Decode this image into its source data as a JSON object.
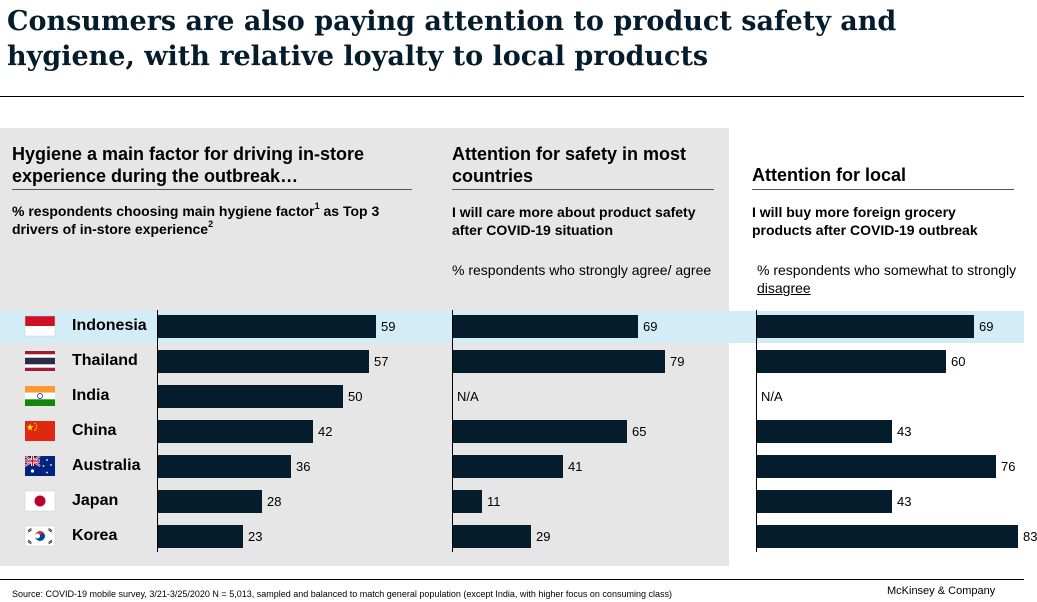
{
  "title": "Consumers are also paying attention to product safety and hygiene, with relative loyalty to local products",
  "countries": [
    {
      "name": "Indonesia",
      "flag": "indonesia-flag"
    },
    {
      "name": "Thailand",
      "flag": "thailand-flag"
    },
    {
      "name": "India",
      "flag": "india-flag"
    },
    {
      "name": "China",
      "flag": "china-flag"
    },
    {
      "name": "Australia",
      "flag": "australia-flag"
    },
    {
      "name": "Japan",
      "flag": "japan-flag"
    },
    {
      "name": "Korea",
      "flag": "korea-flag"
    }
  ],
  "panels": {
    "hygiene": {
      "heading": "Hygiene a main factor for driving in-store experience during the outbreak…",
      "desc_main": "% respondents choosing main hygiene factor",
      "desc_sup1": "1",
      "desc_as": " as Top 3 drivers of in-store experience",
      "desc_sup2": "2"
    },
    "safety": {
      "heading": "Attention for safety in most countries",
      "desc": "I will care more about product safety after COVID-19 situation",
      "note": "% respondents who strongly agree/ agree"
    },
    "local": {
      "heading": "Attention for local",
      "desc": "I will buy more foreign grocery products after COVID-19 outbreak",
      "note_pre": "% respondents who somewhat to strongly ",
      "note_ul": "disagree"
    }
  },
  "chart_data": [
    {
      "type": "bar",
      "categories": [
        "Indonesia",
        "Thailand",
        "India",
        "China",
        "Australia",
        "Japan",
        "Korea"
      ],
      "values": [
        59,
        57,
        50,
        42,
        36,
        28,
        23
      ],
      "labels": [
        "59",
        "57",
        "50",
        "42",
        "36",
        "28",
        "23"
      ]
    },
    {
      "type": "bar",
      "categories": [
        "Indonesia",
        "Thailand",
        "India",
        "China",
        "Australia",
        "Japan",
        "Korea"
      ],
      "values": [
        69,
        79,
        null,
        65,
        41,
        11,
        29
      ],
      "labels": [
        "69",
        "79",
        "N/A",
        "65",
        "41",
        "11",
        "29"
      ]
    },
    {
      "type": "bar",
      "categories": [
        "Indonesia",
        "Thailand",
        "India",
        "China",
        "Australia",
        "Japan",
        "Korea"
      ],
      "values": [
        69,
        60,
        null,
        43,
        76,
        43,
        83
      ],
      "labels": [
        "69",
        "60",
        "N/A",
        "43",
        "76",
        "43",
        "83"
      ]
    }
  ],
  "highlight_row": "Indonesia",
  "colors": {
    "bar": "#051c2c",
    "highlight": "#d2edf7",
    "panel_bg": "#e6e6e6"
  },
  "footer": {
    "source": "Source: COVID-19 mobile survey, 3/21-3/25/2020 N = 5,013, sampled and balanced to match general population (except India, with higher focus on consuming class)",
    "brand": "McKinsey & Company"
  }
}
